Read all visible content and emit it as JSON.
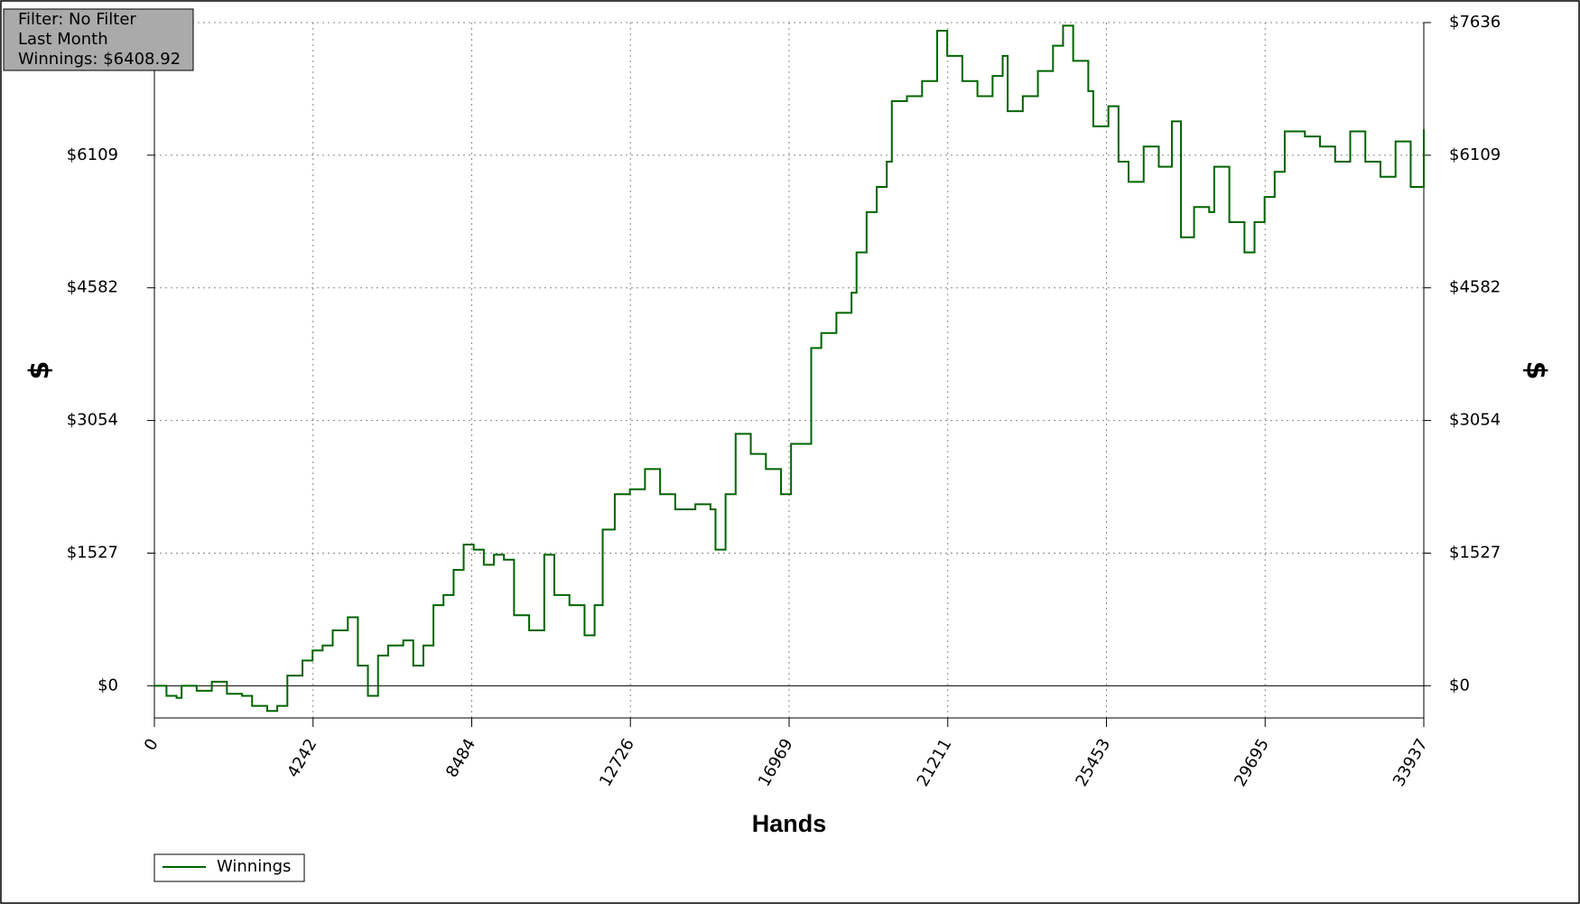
{
  "chart_data": {
    "type": "line",
    "info": [
      "Filter: No Filter",
      "Last Month",
      "Winnings: $6408.92"
    ],
    "xlabel": "Hands",
    "ylabel": "$",
    "y2label": "$",
    "x": [
      0,
      323,
      592,
      727,
      1131,
      1535,
      1939,
      2343,
      2612,
      3016,
      3285,
      3555,
      3959,
      4228,
      4497,
      4767,
      5171,
      5440,
      5709,
      5979,
      6248,
      6652,
      6921,
      7191,
      7460,
      7729,
      7999,
      8268,
      8537,
      8807,
      9076,
      9345,
      9615,
      10019,
      10423,
      10692,
      11096,
      11500,
      11769,
      11985,
      12308,
      12712,
      13116,
      13520,
      13924,
      14462,
      14866,
      15001,
      15270,
      15540,
      15944,
      16348,
      16752,
      17021,
      17290,
      17560,
      17829,
      18233,
      18637,
      18772,
      19041,
      19311,
      19580,
      19715,
      20119,
      20523,
      20927,
      21196,
      21600,
      22004,
      22408,
      22678,
      22812,
      23216,
      23620,
      24024,
      24293,
      24563,
      24967,
      25101,
      25505,
      25775,
      26044,
      26448,
      26852,
      27202,
      27445,
      27795,
      28199,
      28334,
      28738,
      29142,
      29411,
      29681,
      29950,
      30219,
      30758,
      31162,
      31566,
      31970,
      32374,
      32778,
      33182,
      33586,
      33937
    ],
    "series": [
      {
        "name": "Winnings",
        "color": "#006400",
        "values": [
          0,
          -116,
          -139,
          0,
          -58,
          46,
          -93,
          -116,
          -232,
          -290,
          -232,
          116,
          290,
          406,
          464,
          638,
          789,
          232,
          -116,
          348,
          464,
          522,
          232,
          464,
          928,
          1044,
          1334,
          1625,
          1567,
          1393,
          1509,
          1451,
          812,
          638,
          1509,
          1044,
          928,
          580,
          928,
          1799,
          2205,
          2263,
          2495,
          2205,
          2031,
          2089,
          2031,
          1567,
          2205,
          2901,
          2669,
          2495,
          2205,
          2785,
          2785,
          3888,
          4062,
          4294,
          4526,
          4990,
          5454,
          5744,
          6034,
          6731,
          6789,
          6963,
          7543,
          7253,
          6963,
          6789,
          7021,
          7253,
          6615,
          6789,
          7079,
          7369,
          7601,
          7195,
          6847,
          6441,
          6673,
          6034,
          5802,
          6209,
          5976,
          6499,
          5164,
          5512,
          5454,
          5976,
          5338,
          4990,
          5338,
          5628,
          5918,
          6383,
          6325,
          6209,
          6034,
          6383,
          6034,
          5860,
          6267,
          5744,
          6406
        ]
      }
    ],
    "xlim": [
      0,
      33937
    ],
    "ylim": [
      -371,
      7636
    ],
    "xticks": [
      0,
      4242,
      8484,
      12726,
      16969,
      21211,
      25453,
      29695,
      33937
    ],
    "yticks": [
      {
        "value": 0,
        "label": "$0"
      },
      {
        "value": 1527,
        "label": "$1527"
      },
      {
        "value": 3054,
        "label": "$3054"
      },
      {
        "value": 4582,
        "label": "$4582"
      },
      {
        "value": 6109,
        "label": "$6109"
      },
      {
        "value": 7636,
        "label": "$7636"
      }
    ],
    "grid": true,
    "legend": "bottom-left"
  }
}
